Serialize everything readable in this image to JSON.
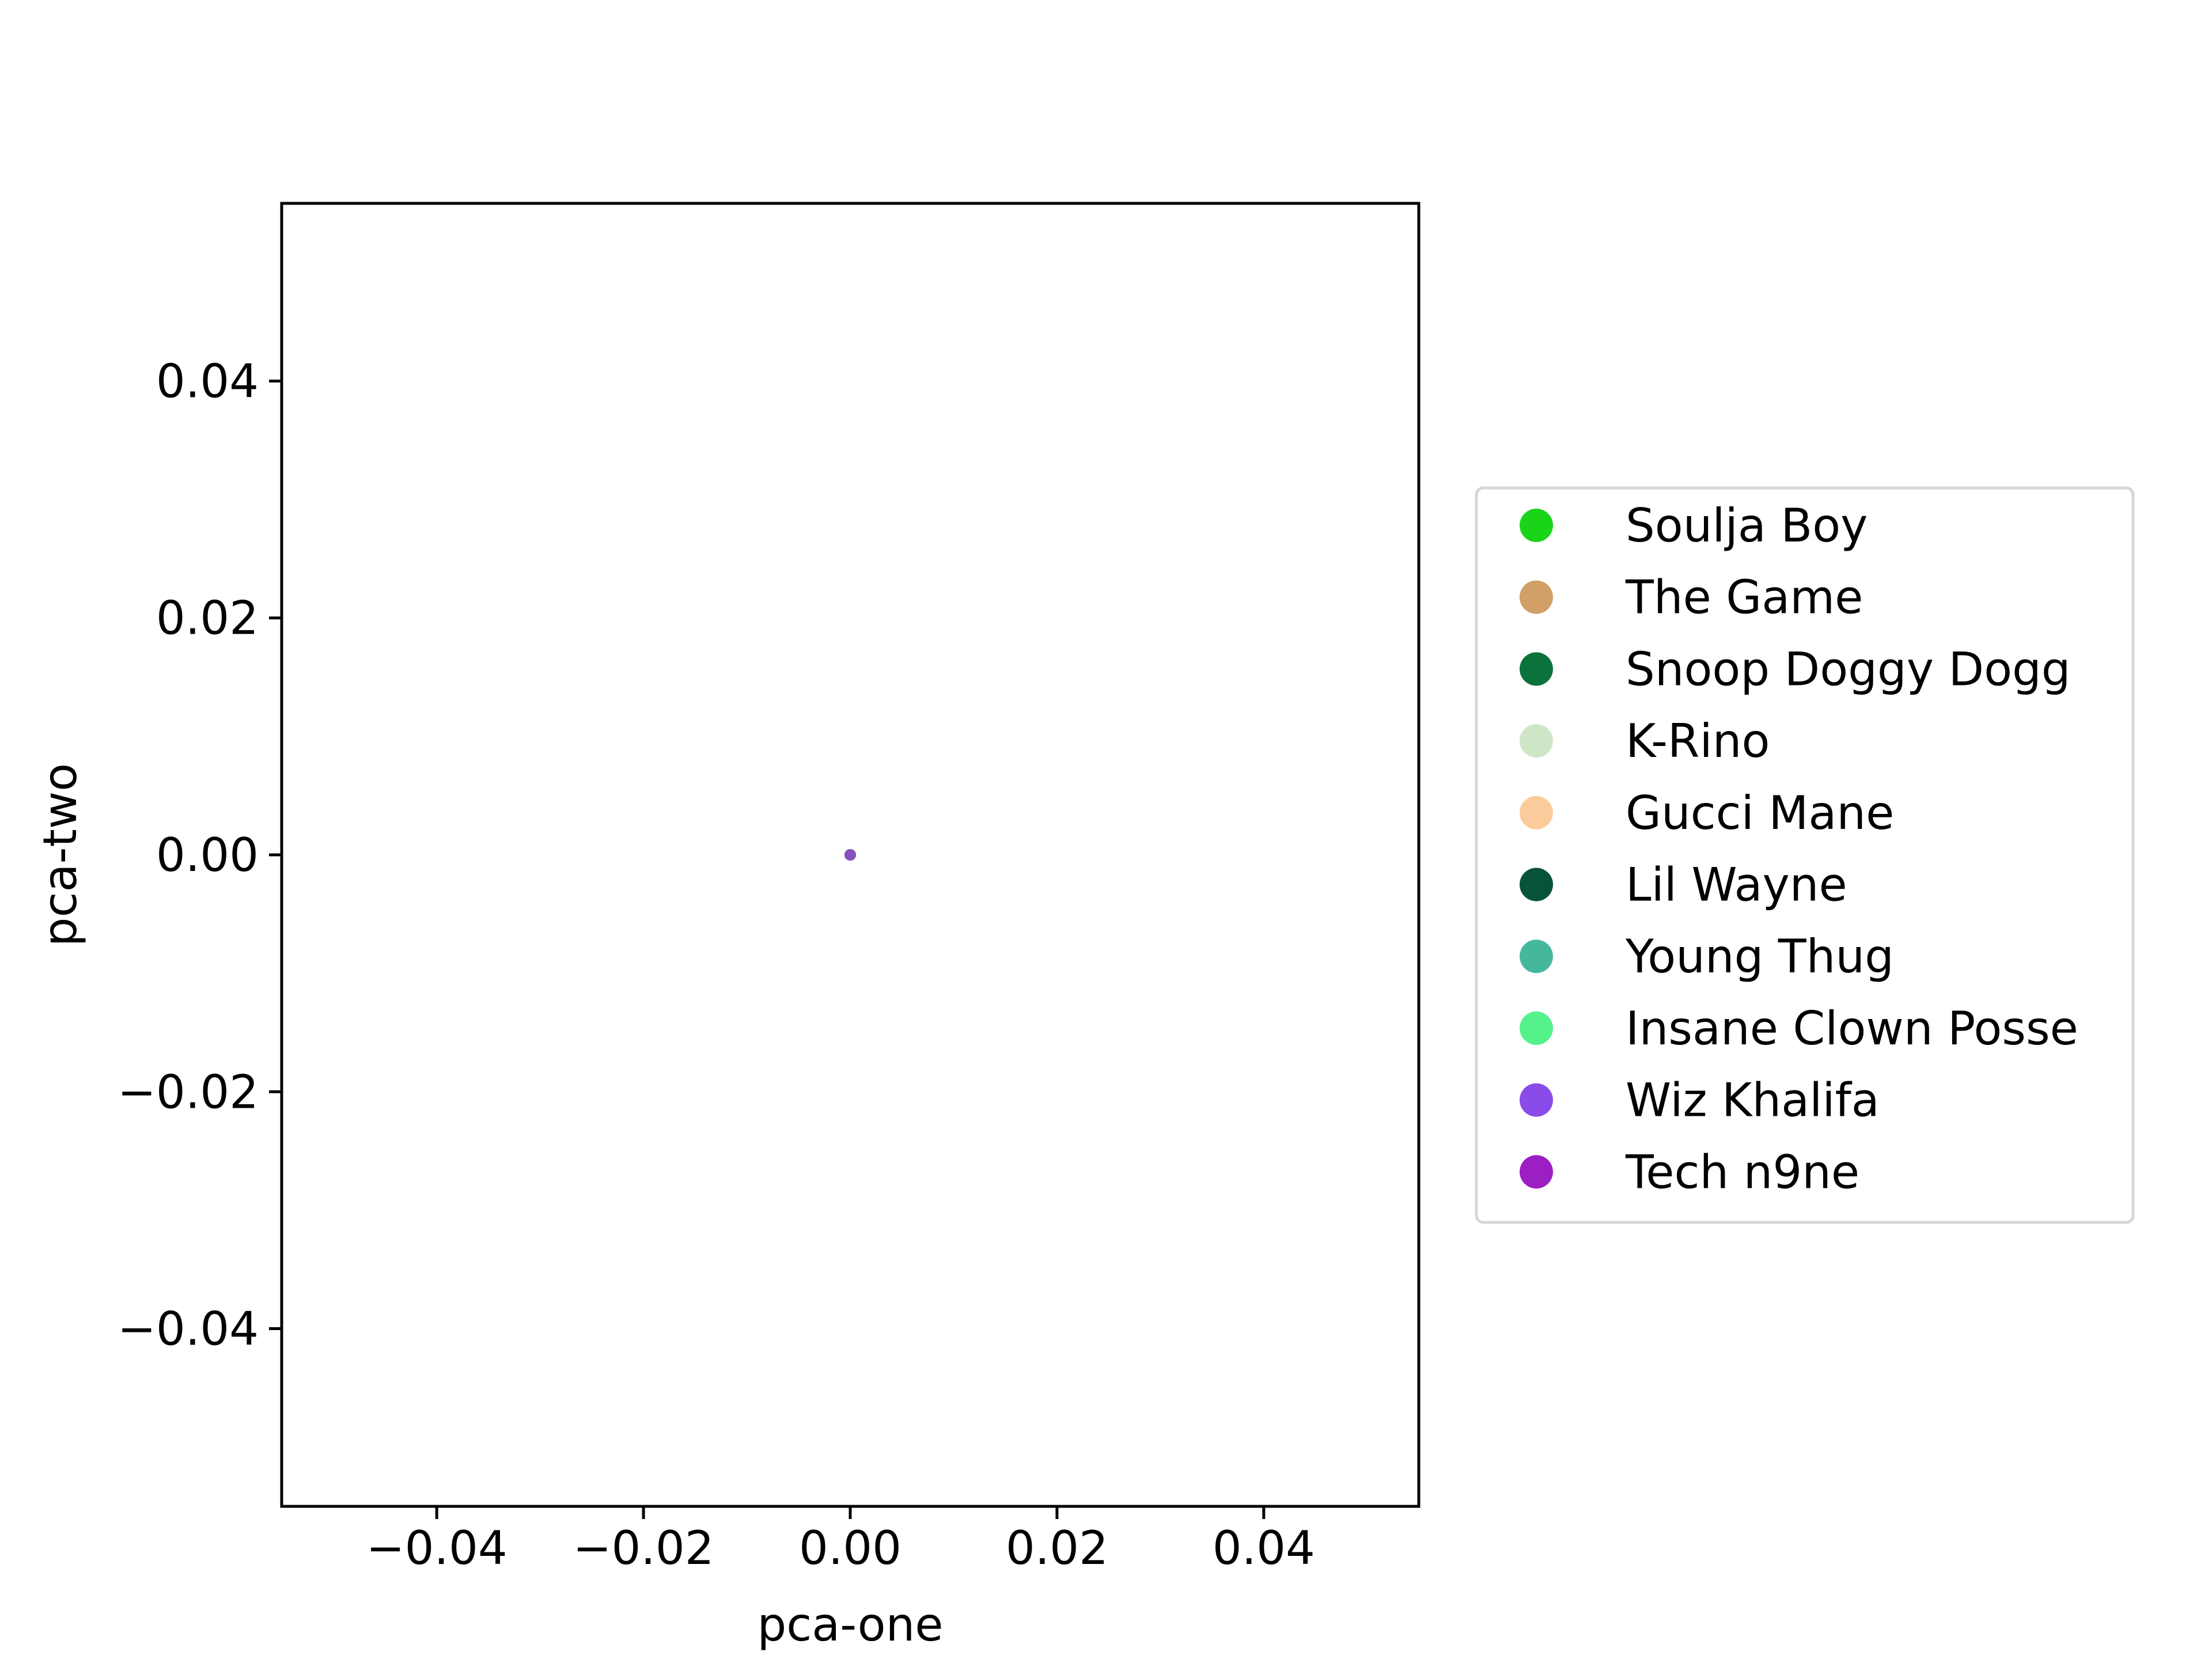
{
  "chart_data": {
    "type": "scatter",
    "xlabel": "pca-one",
    "ylabel": "pca-two",
    "xlim": [
      -0.055,
      0.055
    ],
    "ylim": [
      -0.055,
      0.055
    ],
    "xticks": [
      -0.04,
      -0.02,
      0.0,
      0.02,
      0.04
    ],
    "xtick_labels": [
      "−0.04",
      "−0.02",
      "0.00",
      "0.02",
      "0.04"
    ],
    "yticks": [
      -0.04,
      -0.02,
      0.0,
      0.02,
      0.04
    ],
    "ytick_labels": [
      "−0.04",
      "−0.02",
      "0.00",
      "0.02",
      "0.04"
    ],
    "grid": false,
    "legend_position": "right",
    "series": [
      {
        "name": "Soulja Boy",
        "color": "#1ad41a",
        "points": [
          [
            0.0,
            0.0
          ]
        ]
      },
      {
        "name": "The Game",
        "color": "#d1a066",
        "points": [
          [
            0.0,
            0.0
          ]
        ]
      },
      {
        "name": "Snoop Doggy Dogg",
        "color": "#0b723c",
        "points": [
          [
            0.0,
            0.0
          ]
        ]
      },
      {
        "name": "K-Rino",
        "color": "#cfe6c6",
        "points": [
          [
            0.0,
            0.0
          ]
        ]
      },
      {
        "name": "Gucci Mane",
        "color": "#fccb9c",
        "points": [
          [
            0.0,
            0.0
          ]
        ]
      },
      {
        "name": "Lil Wayne",
        "color": "#07533a",
        "points": [
          [
            0.0,
            0.0
          ]
        ]
      },
      {
        "name": "Young Thug",
        "color": "#45b89c",
        "points": [
          [
            0.0,
            0.0
          ]
        ]
      },
      {
        "name": "Insane Clown Posse",
        "color": "#55f28c",
        "points": [
          [
            0.0,
            0.0
          ]
        ]
      },
      {
        "name": "Wiz Khalifa",
        "color": "#8a4ce8",
        "points": [
          [
            0.0,
            0.0
          ]
        ]
      },
      {
        "name": "Tech n9ne",
        "color": "#9c1fc4",
        "points": [
          [
            0.0,
            0.0
          ]
        ]
      }
    ]
  }
}
